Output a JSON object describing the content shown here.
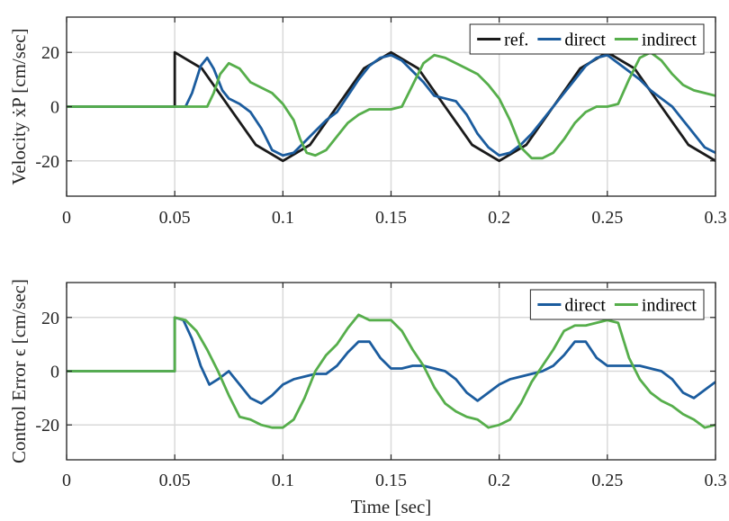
{
  "colors": {
    "ref": "#1a1a1a",
    "direct": "#1b5c9e",
    "indirect": "#56ae4b",
    "grid": "#d9d9d9",
    "axis": "#262626"
  },
  "chart_data": [
    {
      "type": "line",
      "ylabel": "Velocity ẋP [cm/sec]",
      "xlabel": "",
      "xlim": [
        0,
        0.3
      ],
      "ylim": [
        -33,
        33
      ],
      "xticks": [
        "0",
        "0.05",
        "0.1",
        "0.15",
        "0.2",
        "0.25",
        "0.3"
      ],
      "yticks": [
        "-20",
        "0",
        "20"
      ],
      "grid": true,
      "legend_position": "top-right",
      "series": [
        {
          "name": "ref.",
          "color_key": "ref",
          "points": [
            [
              0,
              0
            ],
            [
              0.05,
              0
            ],
            [
              0.05,
              20
            ],
            [
              0.0625,
              14.1
            ],
            [
              0.075,
              0
            ],
            [
              0.0875,
              -14.1
            ],
            [
              0.1,
              -20
            ],
            [
              0.1125,
              -14.1
            ],
            [
              0.125,
              0
            ],
            [
              0.1375,
              14.1
            ],
            [
              0.15,
              20
            ],
            [
              0.1625,
              14.1
            ],
            [
              0.175,
              0
            ],
            [
              0.1875,
              -14.1
            ],
            [
              0.2,
              -20
            ],
            [
              0.2125,
              -14.1
            ],
            [
              0.225,
              0
            ],
            [
              0.2375,
              14.1
            ],
            [
              0.25,
              20
            ],
            [
              0.2625,
              14.1
            ],
            [
              0.275,
              0
            ],
            [
              0.2875,
              -14.1
            ],
            [
              0.3,
              -20
            ]
          ]
        },
        {
          "name": "direct",
          "color_key": "direct",
          "points": [
            [
              0,
              0
            ],
            [
              0.055,
              0
            ],
            [
              0.058,
              5
            ],
            [
              0.062,
              15
            ],
            [
              0.065,
              18
            ],
            [
              0.068,
              14
            ],
            [
              0.072,
              6
            ],
            [
              0.075,
              3
            ],
            [
              0.08,
              1
            ],
            [
              0.085,
              -2
            ],
            [
              0.09,
              -8
            ],
            [
              0.095,
              -16
            ],
            [
              0.1,
              -18
            ],
            [
              0.105,
              -17
            ],
            [
              0.11,
              -13
            ],
            [
              0.115,
              -9
            ],
            [
              0.12,
              -5
            ],
            [
              0.125,
              -2
            ],
            [
              0.13,
              4
            ],
            [
              0.135,
              10
            ],
            [
              0.14,
              15
            ],
            [
              0.145,
              18
            ],
            [
              0.15,
              19
            ],
            [
              0.155,
              17
            ],
            [
              0.16,
              13
            ],
            [
              0.165,
              9
            ],
            [
              0.17,
              4
            ],
            [
              0.175,
              3
            ],
            [
              0.18,
              2
            ],
            [
              0.185,
              -3
            ],
            [
              0.19,
              -10
            ],
            [
              0.195,
              -15
            ],
            [
              0.2,
              -18
            ],
            [
              0.205,
              -17
            ],
            [
              0.21,
              -14
            ],
            [
              0.215,
              -10
            ],
            [
              0.22,
              -5
            ],
            [
              0.225,
              0
            ],
            [
              0.23,
              5
            ],
            [
              0.235,
              10
            ],
            [
              0.24,
              15
            ],
            [
              0.245,
              18
            ],
            [
              0.25,
              19
            ],
            [
              0.255,
              16
            ],
            [
              0.26,
              13
            ],
            [
              0.265,
              10
            ],
            [
              0.27,
              6
            ],
            [
              0.275,
              3
            ],
            [
              0.28,
              0
            ],
            [
              0.285,
              -5
            ],
            [
              0.29,
              -10
            ],
            [
              0.295,
              -15
            ],
            [
              0.3,
              -17
            ]
          ]
        },
        {
          "name": "indirect",
          "color_key": "indirect",
          "points": [
            [
              0,
              0
            ],
            [
              0.065,
              0
            ],
            [
              0.068,
              5
            ],
            [
              0.071,
              12
            ],
            [
              0.075,
              16
            ],
            [
              0.08,
              14
            ],
            [
              0.085,
              9
            ],
            [
              0.09,
              7
            ],
            [
              0.095,
              5
            ],
            [
              0.1,
              1
            ],
            [
              0.105,
              -5
            ],
            [
              0.108,
              -12
            ],
            [
              0.111,
              -17
            ],
            [
              0.115,
              -18
            ],
            [
              0.12,
              -16
            ],
            [
              0.125,
              -11
            ],
            [
              0.13,
              -6
            ],
            [
              0.135,
              -3
            ],
            [
              0.14,
              -1
            ],
            [
              0.145,
              -1
            ],
            [
              0.15,
              -1
            ],
            [
              0.155,
              0
            ],
            [
              0.16,
              8
            ],
            [
              0.165,
              16
            ],
            [
              0.17,
              19
            ],
            [
              0.175,
              18
            ],
            [
              0.18,
              16
            ],
            [
              0.185,
              14
            ],
            [
              0.19,
              12
            ],
            [
              0.195,
              8
            ],
            [
              0.2,
              3
            ],
            [
              0.205,
              -5
            ],
            [
              0.21,
              -15
            ],
            [
              0.215,
              -19
            ],
            [
              0.22,
              -19
            ],
            [
              0.225,
              -17
            ],
            [
              0.23,
              -12
            ],
            [
              0.235,
              -6
            ],
            [
              0.24,
              -2
            ],
            [
              0.245,
              0
            ],
            [
              0.25,
              0
            ],
            [
              0.255,
              1
            ],
            [
              0.26,
              10
            ],
            [
              0.265,
              18
            ],
            [
              0.27,
              20
            ],
            [
              0.275,
              17
            ],
            [
              0.28,
              12
            ],
            [
              0.285,
              8
            ],
            [
              0.29,
              6
            ],
            [
              0.295,
              5
            ],
            [
              0.3,
              4
            ]
          ]
        }
      ]
    },
    {
      "type": "line",
      "ylabel": "Control Error ϵ [cm/sec]",
      "xlabel": "Time [sec]",
      "xlim": [
        0,
        0.3
      ],
      "ylim": [
        -33,
        33
      ],
      "xticks": [
        "0",
        "0.05",
        "0.1",
        "0.15",
        "0.2",
        "0.25",
        "0.3"
      ],
      "yticks": [
        "-20",
        "0",
        "20"
      ],
      "grid": true,
      "legend_position": "top-right",
      "series": [
        {
          "name": "direct",
          "color_key": "direct",
          "points": [
            [
              0,
              0
            ],
            [
              0.05,
              0
            ],
            [
              0.05,
              20
            ],
            [
              0.054,
              19
            ],
            [
              0.058,
              12
            ],
            [
              0.062,
              2
            ],
            [
              0.066,
              -5
            ],
            [
              0.07,
              -3
            ],
            [
              0.075,
              0
            ],
            [
              0.08,
              -5
            ],
            [
              0.085,
              -10
            ],
            [
              0.09,
              -12
            ],
            [
              0.095,
              -9
            ],
            [
              0.1,
              -5
            ],
            [
              0.105,
              -3
            ],
            [
              0.11,
              -2
            ],
            [
              0.115,
              -1
            ],
            [
              0.12,
              -1
            ],
            [
              0.125,
              2
            ],
            [
              0.13,
              7
            ],
            [
              0.135,
              11
            ],
            [
              0.14,
              11
            ],
            [
              0.145,
              5
            ],
            [
              0.15,
              1
            ],
            [
              0.155,
              1
            ],
            [
              0.16,
              2
            ],
            [
              0.165,
              2
            ],
            [
              0.17,
              1
            ],
            [
              0.175,
              0
            ],
            [
              0.18,
              -3
            ],
            [
              0.185,
              -8
            ],
            [
              0.19,
              -11
            ],
            [
              0.195,
              -8
            ],
            [
              0.2,
              -5
            ],
            [
              0.205,
              -3
            ],
            [
              0.21,
              -2
            ],
            [
              0.215,
              -1
            ],
            [
              0.22,
              0
            ],
            [
              0.225,
              2
            ],
            [
              0.23,
              6
            ],
            [
              0.235,
              11
            ],
            [
              0.24,
              11
            ],
            [
              0.245,
              5
            ],
            [
              0.25,
              2
            ],
            [
              0.255,
              2
            ],
            [
              0.26,
              2
            ],
            [
              0.265,
              2
            ],
            [
              0.27,
              1
            ],
            [
              0.275,
              0
            ],
            [
              0.28,
              -3
            ],
            [
              0.285,
              -8
            ],
            [
              0.29,
              -10
            ],
            [
              0.295,
              -7
            ],
            [
              0.3,
              -4
            ]
          ]
        },
        {
          "name": "indirect",
          "color_key": "indirect",
          "points": [
            [
              0,
              0
            ],
            [
              0.05,
              0
            ],
            [
              0.05,
              20
            ],
            [
              0.055,
              19
            ],
            [
              0.06,
              15
            ],
            [
              0.065,
              8
            ],
            [
              0.07,
              0
            ],
            [
              0.075,
              -9
            ],
            [
              0.08,
              -17
            ],
            [
              0.085,
              -18
            ],
            [
              0.09,
              -20
            ],
            [
              0.095,
              -21
            ],
            [
              0.1,
              -21
            ],
            [
              0.105,
              -18
            ],
            [
              0.11,
              -10
            ],
            [
              0.115,
              0
            ],
            [
              0.12,
              6
            ],
            [
              0.125,
              10
            ],
            [
              0.13,
              16
            ],
            [
              0.135,
              21
            ],
            [
              0.14,
              19
            ],
            [
              0.145,
              19
            ],
            [
              0.15,
              19
            ],
            [
              0.155,
              15
            ],
            [
              0.16,
              8
            ],
            [
              0.165,
              2
            ],
            [
              0.17,
              -6
            ],
            [
              0.175,
              -12
            ],
            [
              0.18,
              -15
            ],
            [
              0.185,
              -17
            ],
            [
              0.19,
              -18
            ],
            [
              0.195,
              -21
            ],
            [
              0.2,
              -20
            ],
            [
              0.205,
              -18
            ],
            [
              0.21,
              -12
            ],
            [
              0.215,
              -4
            ],
            [
              0.22,
              2
            ],
            [
              0.225,
              8
            ],
            [
              0.23,
              15
            ],
            [
              0.235,
              17
            ],
            [
              0.24,
              17
            ],
            [
              0.245,
              18
            ],
            [
              0.25,
              19
            ],
            [
              0.255,
              18
            ],
            [
              0.26,
              5
            ],
            [
              0.265,
              -3
            ],
            [
              0.27,
              -8
            ],
            [
              0.275,
              -11
            ],
            [
              0.28,
              -13
            ],
            [
              0.285,
              -16
            ],
            [
              0.29,
              -18
            ],
            [
              0.295,
              -21
            ],
            [
              0.3,
              -20
            ]
          ]
        }
      ]
    }
  ]
}
